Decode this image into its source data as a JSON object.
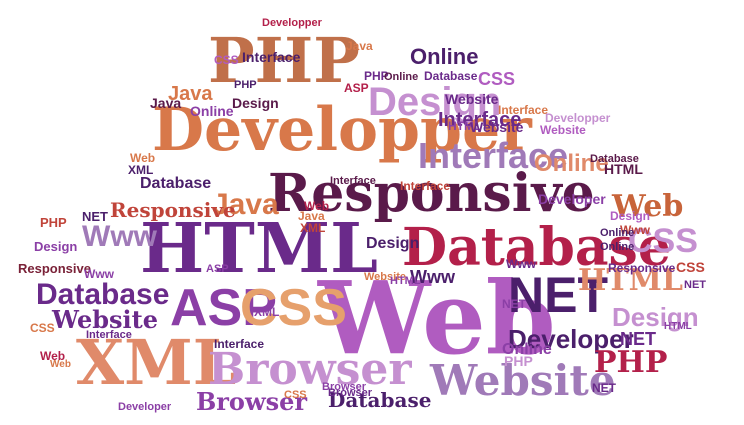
{
  "colors": {
    "purple": "#6a2a8a",
    "deep_purple": "#4b1f6b",
    "orchid": "#b05cc0",
    "violet": "#8b3fa6",
    "lavender": "#c590d0",
    "mauve": "#a07ab8",
    "orange": "#d8784a",
    "salmon": "#e08a6a",
    "peach": "#e6a06c",
    "brick": "#c0443a",
    "crimson": "#b3204a",
    "maroon": "#7a2238",
    "plum": "#5a1a4a",
    "brown_orange": "#c8643a"
  },
  "words": [
    {
      "text": "PHP"
    },
    {
      "text": "Developper"
    },
    {
      "text": "Responsive"
    },
    {
      "text": "HTML"
    },
    {
      "text": "Database"
    },
    {
      "text": "Web"
    },
    {
      "text": "XML"
    },
    {
      "text": "Browser"
    },
    {
      "text": "Website"
    },
    {
      "text": "ASP"
    },
    {
      "text": "CSS"
    },
    {
      "text": "NET"
    },
    {
      "text": "Design"
    },
    {
      "text": "Interface"
    },
    {
      "text": "Online"
    },
    {
      "text": "Java"
    },
    {
      "text": "Www"
    },
    {
      "text": "Online"
    },
    {
      "text": "Interface"
    },
    {
      "text": "Design"
    },
    {
      "text": "Web"
    },
    {
      "text": "CSS"
    },
    {
      "text": "HTML"
    },
    {
      "text": "Developer"
    },
    {
      "text": "PHP"
    },
    {
      "text": "Database"
    },
    {
      "text": "Browser"
    },
    {
      "text": "Website"
    },
    {
      "text": "Database"
    },
    {
      "text": "Java"
    },
    {
      "text": "Responsive"
    },
    {
      "text": "Database"
    },
    {
      "text": "NET"
    },
    {
      "text": "Www"
    },
    {
      "text": "Website"
    },
    {
      "text": "Design"
    },
    {
      "text": "CSS"
    },
    {
      "text": "Developer"
    },
    {
      "text": "Interface"
    },
    {
      "text": "Online"
    },
    {
      "text": "NET"
    },
    {
      "text": "PHP"
    },
    {
      "text": "Responsive"
    },
    {
      "text": "Web"
    },
    {
      "text": "Design"
    },
    {
      "text": "Java"
    },
    {
      "text": "Interface"
    },
    {
      "text": "Online"
    },
    {
      "text": "CSS"
    },
    {
      "text": "Website"
    },
    {
      "text": "Database"
    },
    {
      "text": "Java"
    },
    {
      "text": "Responsive"
    },
    {
      "text": "NET"
    },
    {
      "text": "Www"
    },
    {
      "text": "PHP"
    },
    {
      "text": "Interface"
    },
    {
      "text": "HTML"
    },
    {
      "text": "XML"
    },
    {
      "text": "Design"
    },
    {
      "text": "Online"
    },
    {
      "text": "Developer"
    },
    {
      "text": "Interface"
    },
    {
      "text": "HTML"
    },
    {
      "text": "Web"
    },
    {
      "text": "Www"
    },
    {
      "text": "XML"
    },
    {
      "text": "Website"
    },
    {
      "text": "CSS"
    },
    {
      "text": "Browser"
    },
    {
      "text": "Online"
    },
    {
      "text": "PHP"
    },
    {
      "text": "NET"
    },
    {
      "text": "Website"
    },
    {
      "text": "Developper"
    },
    {
      "text": "Database"
    },
    {
      "text": "Browser"
    },
    {
      "text": "CSS"
    },
    {
      "text": "Developper"
    },
    {
      "text": "HTML"
    },
    {
      "text": "Design"
    },
    {
      "text": "Web"
    },
    {
      "text": "XML"
    },
    {
      "text": "Java"
    },
    {
      "text": "Online"
    },
    {
      "text": "Interface"
    },
    {
      "text": "ASP"
    },
    {
      "text": "Www"
    },
    {
      "text": "CSS"
    },
    {
      "text": "PHP"
    },
    {
      "text": "HTML"
    },
    {
      "text": "Web"
    },
    {
      "text": "NET"
    },
    {
      "text": "ASP"
    },
    {
      "text": "Interface"
    }
  ]
}
